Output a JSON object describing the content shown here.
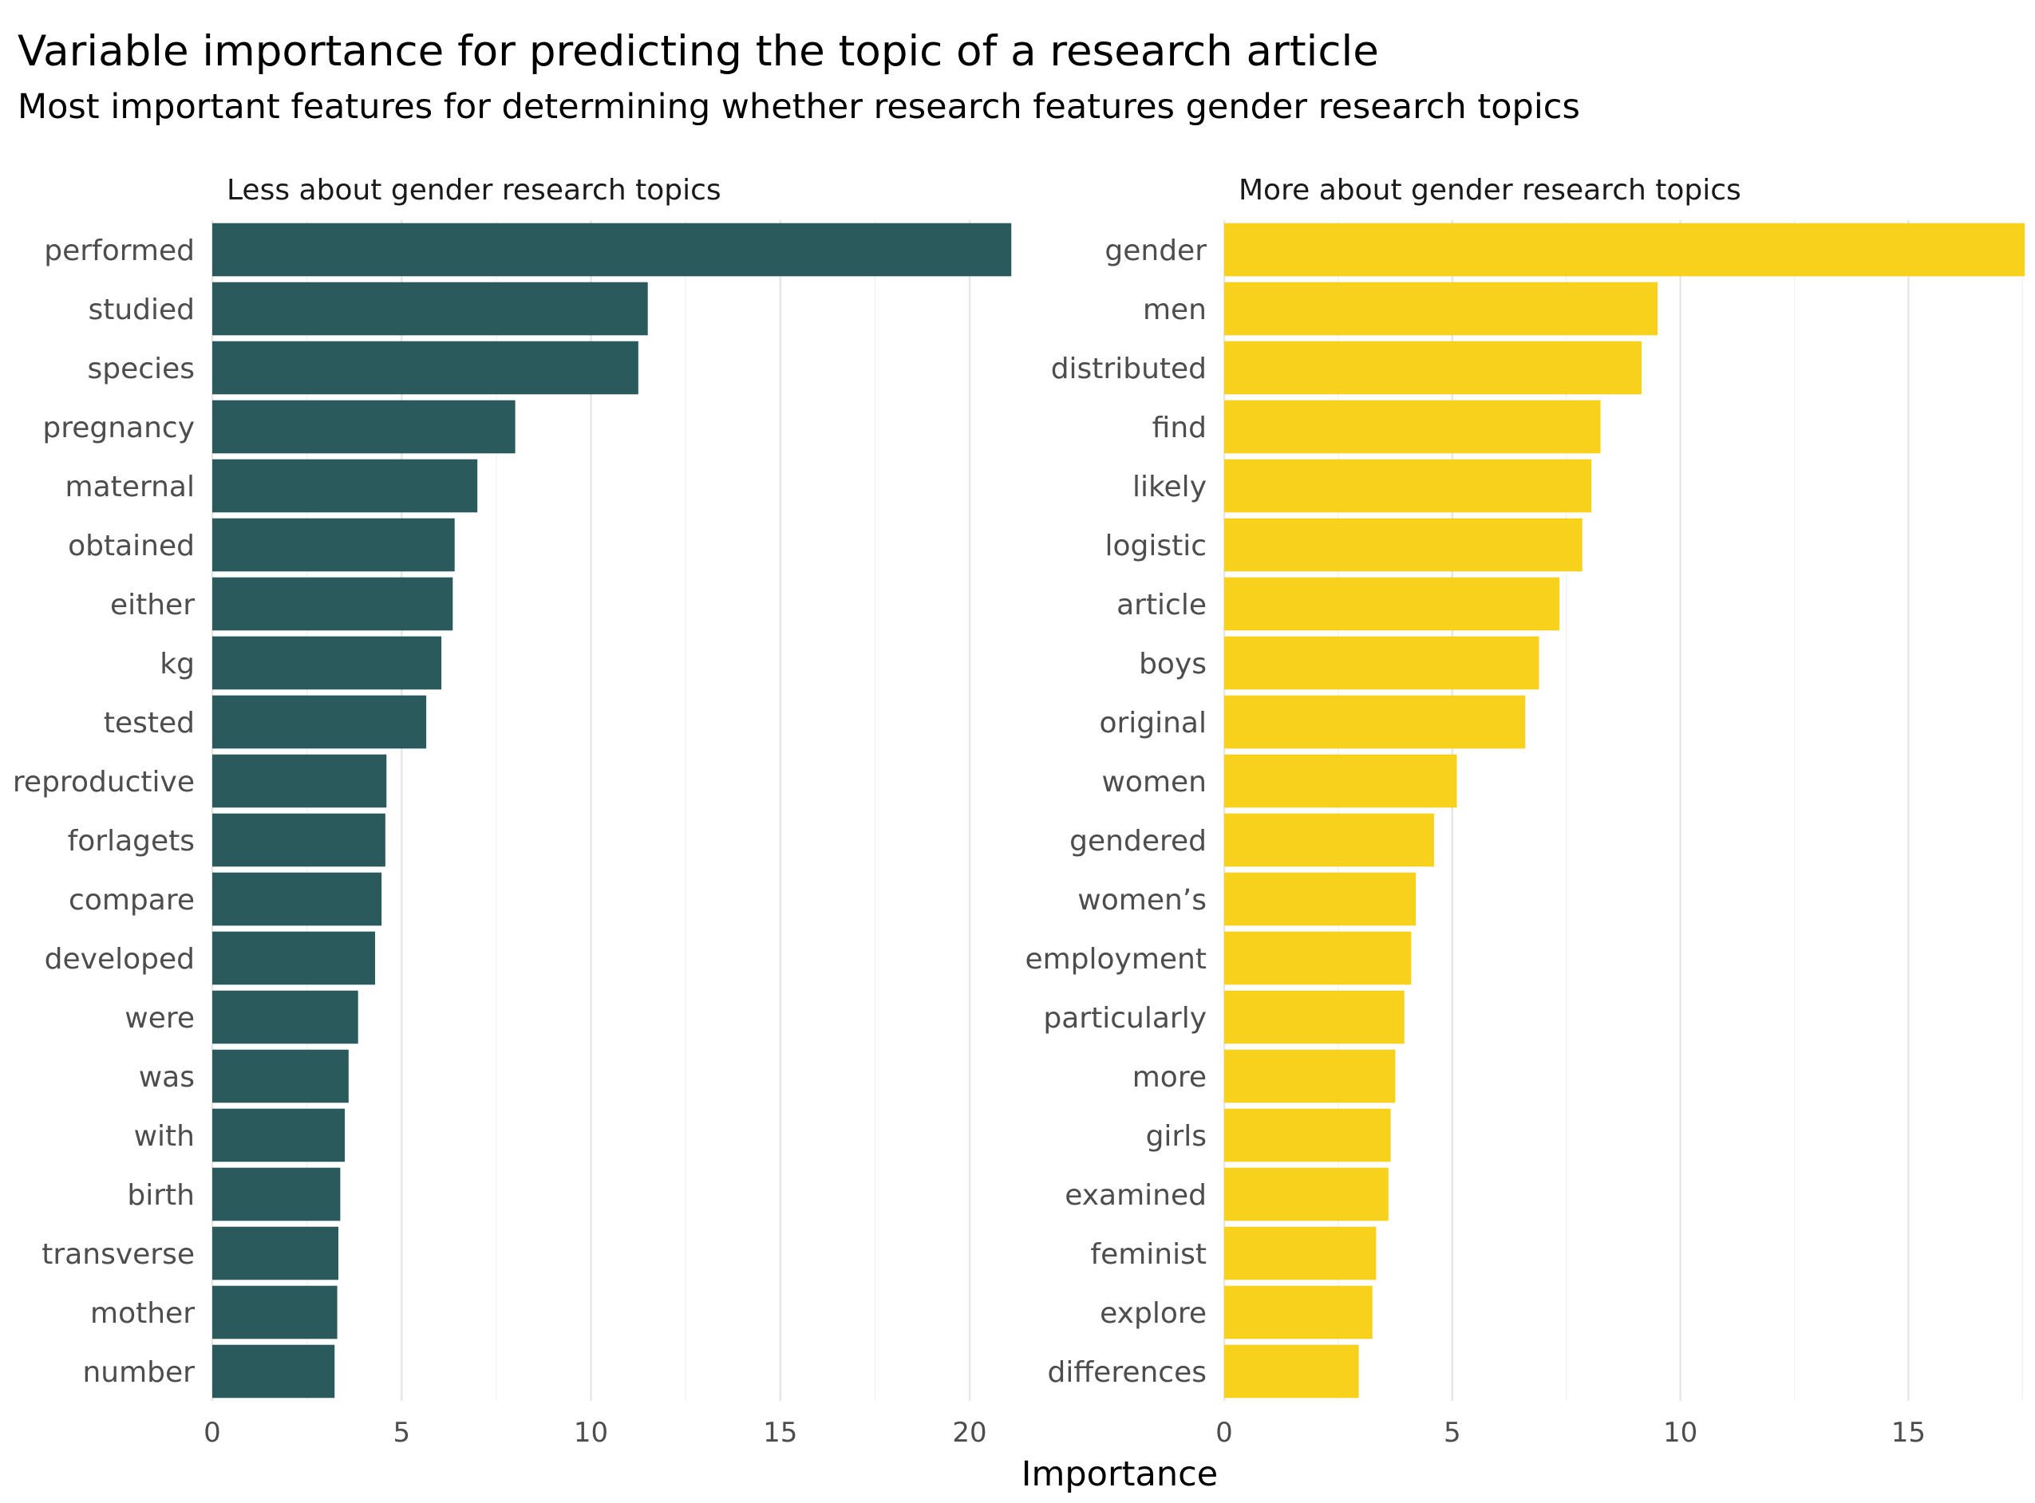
{
  "chart_data": {
    "type": "bar",
    "orientation": "horizontal",
    "title": "Variable importance for predicting the topic of a research article",
    "subtitle": "Most important features for determining whether research features gender research topics",
    "xlabel": "Importance",
    "ylabel": "",
    "grid": true,
    "legend": "none",
    "facets": [
      {
        "label": "Less about gender research topics",
        "color": "#2a5a5b",
        "xlim": [
          0,
          21.2
        ],
        "ticks": [
          0,
          5,
          10,
          15,
          20
        ],
        "categories": [
          "performed",
          "studied",
          "species",
          "pregnancy",
          "maternal",
          "obtained",
          "either",
          "kg",
          "tested",
          "reproductive",
          "forlagets",
          "compare",
          "developed",
          "were",
          "was",
          "with",
          "birth",
          "transverse",
          "mother",
          "number"
        ],
        "values": [
          21.1,
          11.5,
          11.25,
          8.0,
          7.0,
          6.4,
          6.35,
          6.05,
          5.65,
          4.6,
          4.57,
          4.47,
          4.3,
          3.85,
          3.6,
          3.5,
          3.38,
          3.33,
          3.3,
          3.23
        ]
      },
      {
        "label": "More about gender research topics",
        "color": "#f7d11b",
        "xlim": [
          0,
          17.6
        ],
        "ticks": [
          0,
          5,
          10,
          15
        ],
        "categories": [
          "gender",
          "men",
          "distributed",
          "find",
          "likely",
          "logistic",
          "article",
          "boys",
          "original",
          "women",
          "gendered",
          "women’s",
          "employment",
          "particularly",
          "more",
          "girls",
          "examined",
          "feminist",
          "explore",
          "differences"
        ],
        "values": [
          17.55,
          9.5,
          9.15,
          8.25,
          8.05,
          7.85,
          7.35,
          6.9,
          6.6,
          5.1,
          4.6,
          4.2,
          4.1,
          3.95,
          3.75,
          3.65,
          3.6,
          3.33,
          3.25,
          2.95
        ]
      }
    ]
  }
}
